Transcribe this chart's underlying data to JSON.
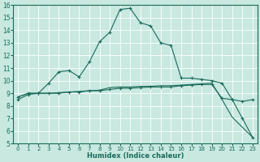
{
  "background_color": "#c8e8e0",
  "grid_color": "#b8d8d0",
  "line_color": "#1a6b5a",
  "xlabel": "Humidex (Indice chaleur)",
  "xlim": [
    0,
    23
  ],
  "ylim": [
    5,
    16
  ],
  "xticks": [
    0,
    1,
    2,
    3,
    4,
    5,
    6,
    7,
    8,
    9,
    10,
    11,
    12,
    13,
    14,
    15,
    16,
    17,
    18,
    19,
    20,
    21,
    22,
    23
  ],
  "yticks": [
    5,
    6,
    7,
    8,
    9,
    10,
    11,
    12,
    13,
    14,
    15,
    16
  ],
  "curve1_x": [
    0,
    1,
    2,
    3,
    4,
    5,
    6,
    7,
    8,
    9,
    10,
    11,
    12,
    13,
    14,
    15,
    16,
    17,
    18,
    19,
    20,
    21,
    22,
    23
  ],
  "curve1_y": [
    8.5,
    8.9,
    9.0,
    9.8,
    10.7,
    10.8,
    10.3,
    11.5,
    13.1,
    13.85,
    15.65,
    15.75,
    14.6,
    14.35,
    13.0,
    12.8,
    10.2,
    10.2,
    10.1,
    10.0,
    9.8,
    8.5,
    8.35,
    8.5
  ],
  "curve2_x": [
    0,
    1,
    2,
    3,
    4,
    5,
    6,
    7,
    8,
    9,
    10,
    11,
    12,
    13,
    14,
    15,
    16,
    17,
    18,
    19,
    20,
    21,
    22,
    23
  ],
  "curve2_y": [
    8.7,
    9.0,
    9.0,
    9.0,
    9.0,
    9.1,
    9.1,
    9.2,
    9.2,
    9.3,
    9.4,
    9.4,
    9.45,
    9.5,
    9.5,
    9.5,
    9.6,
    9.65,
    9.7,
    9.7,
    8.6,
    8.5,
    7.0,
    5.5
  ],
  "curve3_x": [
    0,
    1,
    2,
    3,
    4,
    5,
    6,
    7,
    8,
    9,
    10,
    11,
    12,
    13,
    14,
    15,
    16,
    17,
    18,
    19,
    20,
    21,
    22,
    23
  ],
  "curve3_y": [
    8.7,
    9.0,
    9.0,
    9.0,
    9.05,
    9.1,
    9.15,
    9.2,
    9.25,
    9.45,
    9.5,
    9.5,
    9.55,
    9.55,
    9.6,
    9.6,
    9.65,
    9.7,
    9.75,
    9.8,
    8.5,
    7.1,
    6.3,
    5.5
  ],
  "tick_fontsize_x": 5.0,
  "tick_fontsize_y": 5.5,
  "xlabel_fontsize": 6.0
}
